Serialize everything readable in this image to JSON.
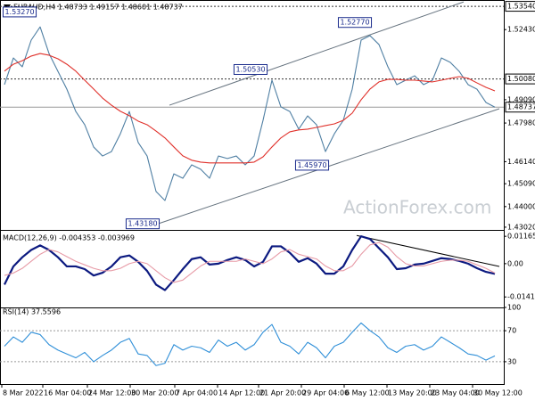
{
  "chart_data": [
    {
      "type": "line",
      "title": "EURAUD,H4 1.48733 1.49157 1.48601 1.48737",
      "watermark": "ActionForex.com",
      "x": [
        0,
        1,
        2,
        3,
        4,
        5,
        6,
        7,
        8,
        9,
        10,
        11,
        12,
        13,
        14,
        15,
        16,
        17,
        18,
        19,
        20,
        21,
        22,
        23,
        24,
        25,
        26,
        27,
        28,
        29,
        30,
        31,
        32,
        33,
        34,
        35,
        36,
        37,
        38,
        39,
        40,
        41,
        42,
        43,
        44,
        45,
        46,
        47,
        48,
        49,
        50,
        51,
        52,
        53,
        54,
        55
      ],
      "xlim": [
        -0.5,
        56
      ],
      "ylim": [
        1.4289,
        1.5384
      ],
      "yticks": [
        {
          "value": 1.5243,
          "label": "1.52430"
        },
        {
          "value": 1.4909,
          "label": "1.49090"
        },
        {
          "value": 1.4798,
          "label": "1.47980"
        },
        {
          "value": 1.4614,
          "label": "1.46140"
        },
        {
          "value": 1.4509,
          "label": "1.45090"
        },
        {
          "value": 1.44,
          "label": "1.44000"
        },
        {
          "value": 1.4302,
          "label": "1.43020"
        }
      ],
      "levels": [
        {
          "value": 1.5354,
          "label": "1.53540",
          "line": "dotted"
        },
        {
          "value": 1.5008,
          "label": "1.50080",
          "line": "dotted"
        },
        {
          "value": 1.48737,
          "label": "1.48737",
          "line": "solid"
        }
      ],
      "series": [
        {
          "color": "#4f7fa3",
          "values": [
            1.4981,
            1.5108,
            1.5066,
            1.5193,
            1.5256,
            1.5129,
            1.5044,
            1.4959,
            1.4853,
            1.479,
            1.4684,
            1.4641,
            1.4662,
            1.4747,
            1.4853,
            1.4705,
            1.4641,
            1.4472,
            1.4429,
            1.4556,
            1.4535,
            1.4599,
            1.4578,
            1.4535,
            1.4641,
            1.4629,
            1.4641,
            1.4599,
            1.4641,
            1.4811,
            1.5002,
            1.4875,
            1.4853,
            1.4769,
            1.4832,
            1.479,
            1.4662,
            1.4747,
            1.4811,
            1.4959,
            1.5193,
            1.5214,
            1.5172,
            1.5066,
            1.4981,
            1.5002,
            1.5023,
            1.4981,
            1.5002,
            1.5108,
            1.5087,
            1.5044,
            1.4981,
            1.4959,
            1.4896,
            1.48737
          ]
        },
        {
          "color": "#e0302a",
          "values": [
            1.5045,
            1.5078,
            1.5095,
            1.5117,
            1.5129,
            1.5121,
            1.5104,
            1.5078,
            1.5045,
            1.5002,
            1.496,
            1.4917,
            1.4883,
            1.4854,
            1.4833,
            1.4807,
            1.479,
            1.476,
            1.4727,
            1.4684,
            1.4642,
            1.4621,
            1.4612,
            1.4608,
            1.4608,
            1.4608,
            1.4608,
            1.4608,
            1.4612,
            1.4637,
            1.4684,
            1.4727,
            1.4756,
            1.4765,
            1.4769,
            1.4777,
            1.4786,
            1.4794,
            1.4811,
            1.4845,
            1.4909,
            1.496,
            1.4994,
            1.5006,
            1.5006,
            1.5002,
            1.5002,
            1.4998,
            1.4994,
            1.5002,
            1.5011,
            1.5019,
            1.5011,
            1.4989,
            1.4968,
            1.4951
          ]
        }
      ],
      "trendlines": [
        {
          "color": "#66737f",
          "x": [
            18.5,
            51.5
          ],
          "y": [
            1.4883,
            1.5375
          ]
        },
        {
          "color": "#66737f",
          "x": [
            17,
            55.5
          ],
          "y": [
            1.4315,
            1.48661
          ]
        }
      ],
      "annotations": [
        {
          "label": "1.53270",
          "x": 1.7,
          "y": 1.5327
        },
        {
          "label": "1.52770",
          "x": 39.3,
          "y": 1.5277
        },
        {
          "label": "1.50530",
          "x": 27.6,
          "y": 1.5053
        },
        {
          "label": "1.45970",
          "x": 34.5,
          "y": 1.4597
        },
        {
          "label": "1.43180",
          "x": 15.5,
          "y": 1.4318
        }
      ]
    },
    {
      "type": "line",
      "title": "MACD(12,26,9) -0.004353 -0.003969",
      "x": [
        0,
        1,
        2,
        3,
        4,
        5,
        6,
        7,
        8,
        9,
        10,
        11,
        12,
        13,
        14,
        15,
        16,
        17,
        18,
        19,
        20,
        21,
        22,
        23,
        24,
        25,
        26,
        27,
        28,
        29,
        30,
        31,
        32,
        33,
        34,
        35,
        36,
        37,
        38,
        39,
        40,
        41,
        42,
        43,
        44,
        45,
        46,
        47,
        48,
        49,
        50,
        51,
        52,
        53,
        54,
        55
      ],
      "xlim": [
        -0.5,
        56
      ],
      "ylim": [
        -0.01864,
        0.01437
      ],
      "yticks": [
        {
          "value": 0.01165,
          "label": "0.01165"
        },
        {
          "value": 0,
          "label": "0.00"
        },
        {
          "value": -0.014174,
          "label": "-0.014174"
        }
      ],
      "series": [
        {
          "color": "#0c1a80",
          "values": [
            -0.00893,
            -0.00117,
            0.00272,
            0.00583,
            0.00777,
            0.00583,
            0.00272,
            -0.00117,
            -0.00117,
            -0.00233,
            -0.00505,
            -0.00388,
            -0.00117,
            0.00272,
            0.0035,
            0.00078,
            -0.00311,
            -0.00893,
            -0.01126,
            -0.00699,
            -0.00233,
            0.00194,
            0.00272,
            -0.00039,
            0,
            0.00155,
            0.00272,
            0.00155,
            -0.00117,
            0.00078,
            0.00738,
            0.00738,
            0.00466,
            0.00078,
            0.00233,
            0,
            -0.00427,
            -0.00427,
            -0.00117,
            0.00583,
            0.01165,
            0.01049,
            0.0066,
            0.00272,
            -0.00233,
            -0.00194,
            -0.00039,
            0,
            0.00117,
            0.00233,
            0.00194,
            0.00117,
            0,
            -0.00194,
            -0.0035,
            -0.004353
          ]
        },
        {
          "color": "#e79aa6",
          "values": [
            -0.005,
            -0.004,
            -0.002,
            0.001,
            0.004,
            0.006,
            0.005,
            0.003,
            0.001,
            -0.0005,
            -0.002,
            -0.003,
            -0.003,
            -0.002,
            0,
            0.001,
            0,
            -0.003,
            -0.006,
            -0.008,
            -0.007,
            -0.004,
            -0.001,
            0.001,
            0.001,
            0.001,
            0.001,
            0.002,
            0.001,
            0,
            0.002,
            0.005,
            0.006,
            0.004,
            0.003,
            0.002,
            -0.001,
            -0.003,
            -0.003,
            -0.001,
            0.004,
            0.008,
            0.009,
            0.007,
            0.003,
            0,
            -0.001,
            -0.001,
            0,
            0.001,
            0.0015,
            0.0015,
            0.001,
            -0.0005,
            -0.002,
            -0.003969
          ]
        }
      ],
      "trendlines": [
        {
          "color": "#000000",
          "x": [
            39.5,
            55.5
          ],
          "y": [
            0.012,
            -0.0012
          ]
        }
      ]
    },
    {
      "type": "line",
      "title": "RSI(14) 37.5596",
      "x": [
        0,
        1,
        2,
        3,
        4,
        5,
        6,
        7,
        8,
        9,
        10,
        11,
        12,
        13,
        14,
        15,
        16,
        17,
        18,
        19,
        20,
        21,
        22,
        23,
        24,
        25,
        26,
        27,
        28,
        29,
        30,
        31,
        32,
        33,
        34,
        35,
        36,
        37,
        38,
        39,
        40,
        41,
        42,
        43,
        44,
        45,
        46,
        47,
        48,
        49,
        50,
        51,
        52,
        53,
        54,
        55
      ],
      "xlim": [
        -0.5,
        56
      ],
      "ylim": [
        0,
        100
      ],
      "yticks": [
        100,
        70,
        30
      ],
      "grid_ticks": [
        70,
        30
      ],
      "xticks": [
        {
          "value": -0.3,
          "label": "8 Mar 2022"
        },
        {
          "value": 4.3,
          "label": "16 Mar 04:00"
        },
        {
          "value": 9.3,
          "label": "24 Mar 12:00"
        },
        {
          "value": 14.1,
          "label": "30 Mar 20:00"
        },
        {
          "value": 19.1,
          "label": "7 Apr 04:00"
        },
        {
          "value": 23.9,
          "label": "14 Apr 12:00"
        },
        {
          "value": 28.5,
          "label": "21 Apr 20:00"
        },
        {
          "value": 33.3,
          "label": "29 Apr 04:00"
        },
        {
          "value": 38.1,
          "label": "6 May 12:00"
        },
        {
          "value": 42.9,
          "label": "13 May 20:00"
        },
        {
          "value": 47.7,
          "label": "23 May 04:00"
        },
        {
          "value": 52.5,
          "label": "30 May 12:00"
        }
      ],
      "series": [
        {
          "color": "#2f8fd8",
          "values": [
            50,
            62,
            55,
            68,
            65,
            52,
            45,
            40,
            35,
            42,
            30,
            38,
            45,
            55,
            60,
            40,
            38,
            25,
            28,
            52,
            45,
            50,
            48,
            42,
            58,
            50,
            55,
            45,
            52,
            68,
            78,
            55,
            50,
            40,
            55,
            48,
            35,
            50,
            55,
            68,
            80,
            70,
            62,
            48,
            42,
            50,
            52,
            45,
            50,
            62,
            55,
            48,
            40,
            38,
            32,
            37.5596
          ]
        }
      ]
    }
  ]
}
